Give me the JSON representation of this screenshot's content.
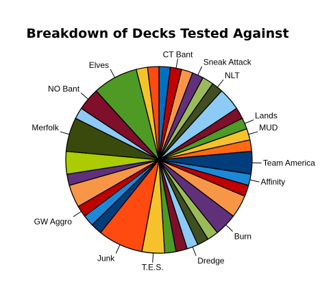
{
  "chart_data": {
    "type": "pie",
    "title": "Breakdown of Decks Tested Against",
    "legend": "none",
    "start": "top, clockwise",
    "slices": [
      {
        "value": 1.0,
        "color": "#0070c0"
      },
      {
        "value": 1.0,
        "color": "#c00000",
        "label": "CT Bant"
      },
      {
        "value": 1.0,
        "color": "#f79646"
      },
      {
        "value": 1.0,
        "color": "#60317a",
        "label": "Sneak Attack"
      },
      {
        "value": 1.0,
        "color": "#9bbb59"
      },
      {
        "value": 1.0,
        "color": "#3f4f1f",
        "label": "NLT"
      },
      {
        "value": 2.0,
        "color": "#8ccbf5"
      },
      {
        "value": 1.0,
        "color": "#7f0f2a"
      },
      {
        "value": 1.0,
        "color": "#4e9a25",
        "label": "Lands"
      },
      {
        "value": 1.0,
        "color": "#f5c22c",
        "label": "MUD"
      },
      {
        "value": 1.0,
        "color": "#ff6a13"
      },
      {
        "value": 2.0,
        "color": "#003d7a",
        "label": "Team America"
      },
      {
        "value": 1.0,
        "color": "#1e88d6",
        "label": "Affinity"
      },
      {
        "value": 1.0,
        "color": "#c00000"
      },
      {
        "value": 2.0,
        "color": "#f79646"
      },
      {
        "value": 2.0,
        "color": "#60317a",
        "label": "Burn"
      },
      {
        "value": 1.0,
        "color": "#9bbb59"
      },
      {
        "value": 1.0,
        "color": "#3f4f1f"
      },
      {
        "value": 1.0,
        "color": "#8ccbf5",
        "label": "Dredge"
      },
      {
        "value": 1.0,
        "color": "#7f0f2a"
      },
      {
        "value": 1.0,
        "color": "#4e9a25"
      },
      {
        "value": 2.0,
        "color": "#f5c22c",
        "label": "T.E.S."
      },
      {
        "value": 4.0,
        "color": "#ff4a10",
        "label": "Junk"
      },
      {
        "value": 1.0,
        "color": "#003d7a"
      },
      {
        "value": 1.0,
        "color": "#1e88d6"
      },
      {
        "value": 1.0,
        "color": "#c00000",
        "label": "GW Aggro"
      },
      {
        "value": 2.0,
        "color": "#f79646"
      },
      {
        "value": 1.0,
        "color": "#60317a"
      },
      {
        "value": 2.0,
        "color": "#aacc00"
      },
      {
        "value": 3.0,
        "color": "#3a4a0d",
        "label": "Merfolk"
      },
      {
        "value": 1.0,
        "color": "#8ccbf5"
      },
      {
        "value": 2.0,
        "color": "#7f0f2a",
        "label": "NO Bant"
      },
      {
        "value": 4.0,
        "color": "#4e9a25",
        "label": "Elves"
      },
      {
        "value": 1.0,
        "color": "#f5c22c"
      },
      {
        "value": 1.0,
        "color": "#ff4a10"
      }
    ]
  }
}
